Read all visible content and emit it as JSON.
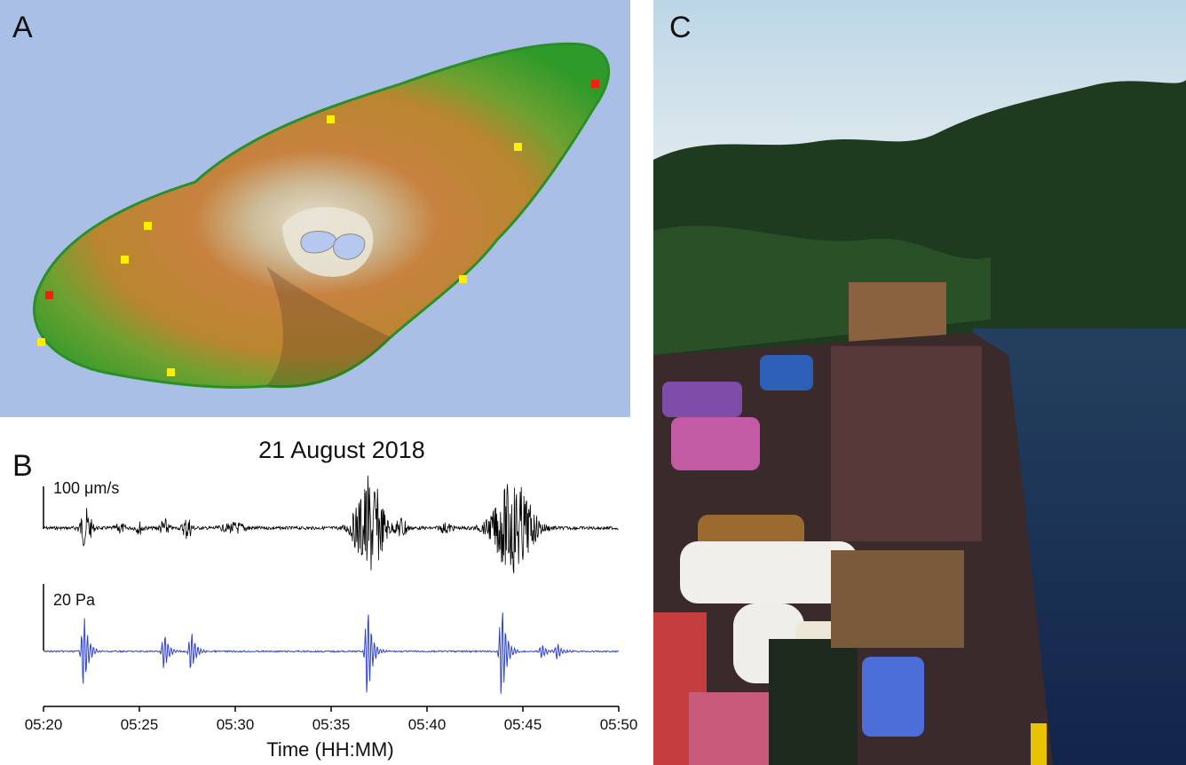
{
  "figure": {
    "panel_a_label": "A",
    "panel_b_label": "B",
    "panel_c_label": "C"
  },
  "panel_a": {
    "colors": {
      "sea": "#a9bfe6",
      "lowland": "#3fa52c",
      "midslope": "#c88a45",
      "summit": "#d9d2c0",
      "crater_lake": "#b6c8ef"
    },
    "station_markers": [
      {
        "color": "yellow"
      },
      {
        "color": "yellow"
      },
      {
        "color": "yellow"
      },
      {
        "color": "yellow"
      },
      {
        "color": "yellow"
      },
      {
        "color": "yellow"
      },
      {
        "color": "yellow"
      },
      {
        "color": "yellow"
      },
      {
        "color": "red"
      },
      {
        "color": "red"
      }
    ]
  },
  "chart_data": {
    "type": "line",
    "title": "21 August 2018",
    "xlabel": "Time (HH:MM)",
    "xlim": [
      "05:20",
      "05:50"
    ],
    "x_ticks": [
      "05:20",
      "05:25",
      "05:30",
      "05:35",
      "05:40",
      "05:45",
      "05:50"
    ],
    "series": [
      {
        "scale_label": "100 μm/s",
        "color": "#000000",
        "bursts": [
          {
            "t": "05:22.2",
            "amp": 0.5,
            "dur_min": 0.9
          },
          {
            "t": "05:24.0",
            "amp": 0.12,
            "dur_min": 0.7
          },
          {
            "t": "05:25.0",
            "amp": 0.15,
            "dur_min": 0.6
          },
          {
            "t": "05:26.3",
            "amp": 0.22,
            "dur_min": 0.7
          },
          {
            "t": "05:27.5",
            "amp": 0.3,
            "dur_min": 0.7
          },
          {
            "t": "05:30.0",
            "amp": 0.12,
            "dur_min": 2.0
          },
          {
            "t": "05:37.0",
            "amp": 1.3,
            "dur_min": 2.2
          },
          {
            "t": "05:38.7",
            "amp": 0.3,
            "dur_min": 0.8
          },
          {
            "t": "05:41.0",
            "amp": 0.12,
            "dur_min": 1.0
          },
          {
            "t": "05:44.5",
            "amp": 1.2,
            "dur_min": 3.0
          }
        ]
      },
      {
        "scale_label": "20 Pa",
        "color": "#3346c8",
        "pulses": [
          {
            "t": "05:22.1",
            "amp": 1.0
          },
          {
            "t": "05:26.3",
            "amp": 0.5
          },
          {
            "t": "05:27.7",
            "amp": 0.55
          },
          {
            "t": "05:36.9",
            "amp": 1.25
          },
          {
            "t": "05:43.9",
            "amp": 1.3
          },
          {
            "t": "05:46.0",
            "amp": 0.2
          },
          {
            "t": "05:46.8",
            "amp": 0.2
          }
        ]
      }
    ]
  },
  "panel_c": {
    "colors": {
      "sky": "#cfdde8",
      "trees": "#1d3a1d",
      "water": "#1b2f52",
      "deck": "#4a2f3a"
    }
  }
}
